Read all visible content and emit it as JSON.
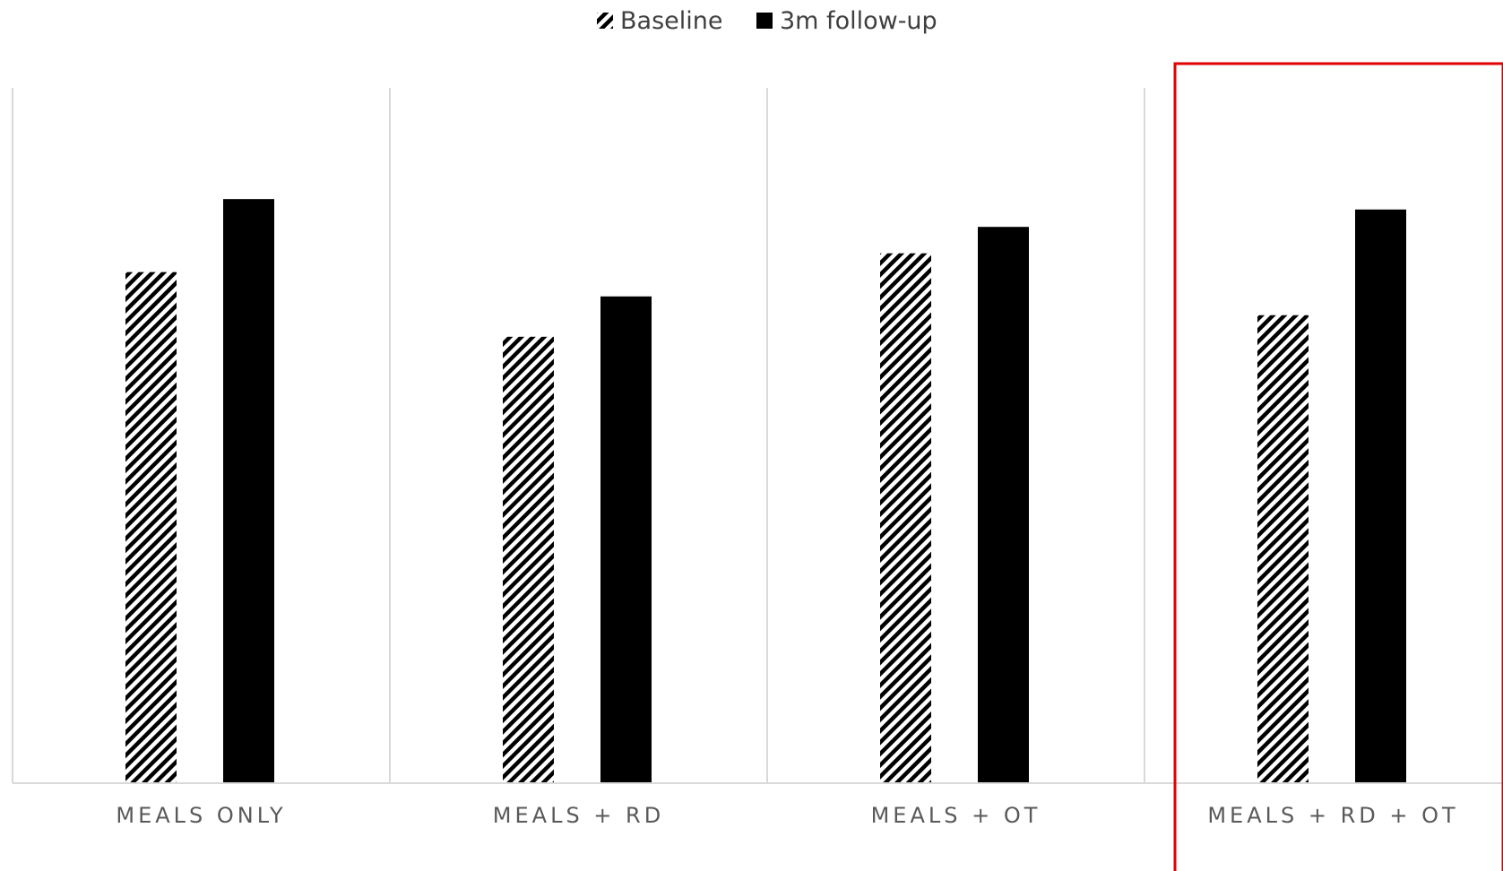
{
  "chart_data": {
    "type": "bar",
    "title": "",
    "xlabel": "",
    "ylabel": "",
    "categories": [
      "MEALS ONLY",
      "MEALS + RD",
      "MEALS + OT",
      "MEALS + RD + OT"
    ],
    "series": [
      {
        "name": "Baseline",
        "pattern": "diagonal-hatch",
        "color": "#000000",
        "values": [
          73.5,
          64.2,
          76.2,
          67.3
        ]
      },
      {
        "name": "3m follow-up",
        "pattern": "solid",
        "color": "#000000",
        "values": [
          84.0,
          70.0,
          80.0,
          82.5
        ]
      }
    ],
    "ylim": [
      0,
      100
    ],
    "y_axis_visible": false,
    "grid": "vertical-category-separators",
    "legend_position": "top-center",
    "highlight": {
      "category": "MEALS + RD + OT",
      "color": "#e00000"
    }
  }
}
